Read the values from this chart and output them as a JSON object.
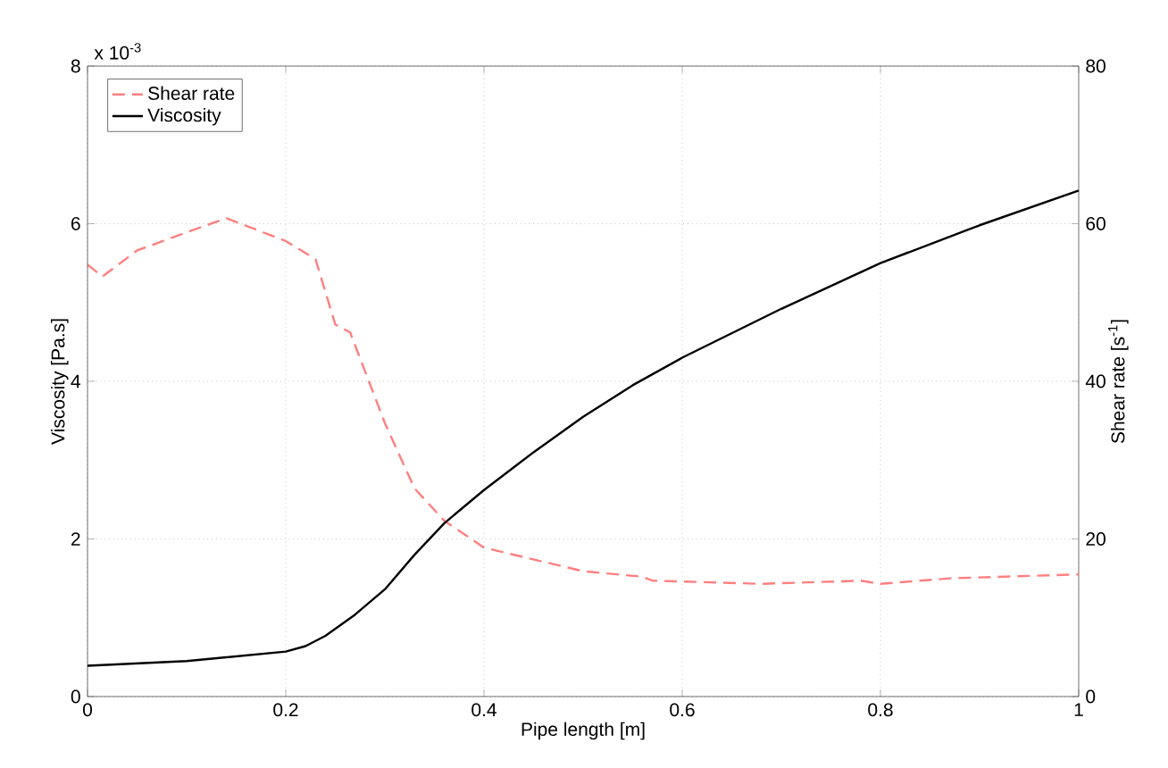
{
  "chart_data": {
    "type": "line",
    "xlabel": "Pipe length [m]",
    "ylabel": "Viscosity [Pa.s]",
    "y2label": "Shear rate [s$^{-1}$]",
    "annotations": [
      "x 10$^{-3}$"
    ],
    "xlim": [
      0,
      1
    ],
    "xticks": [
      0,
      0.2,
      0.4,
      0.6,
      0.8,
      1
    ],
    "ylim": [
      0,
      8
    ],
    "yticks": [
      0,
      2,
      4,
      6,
      8
    ],
    "y2lim": [
      0,
      80
    ],
    "y2ticks": [
      0,
      20,
      40,
      60,
      80
    ],
    "grid": true,
    "legend": "top left",
    "series": [
      {
        "name": "Shear rate",
        "color": "#ff7f7f",
        "axis": "y2",
        "line_style": "dashed",
        "x": [
          0,
          0.015,
          0.05,
          0.1,
          0.14,
          0.2,
          0.23,
          0.25,
          0.265,
          0.3,
          0.33,
          0.36,
          0.4,
          0.5,
          0.56,
          0.57,
          0.68,
          0.78,
          0.8,
          0.87,
          1.0
        ],
        "values": [
          54.8,
          53.3,
          56.6,
          58.9,
          60.7,
          57.8,
          55.5,
          47.2,
          46.2,
          34.7,
          26.4,
          22.3,
          18.9,
          15.9,
          15.2,
          14.7,
          14.3,
          14.7,
          14.3,
          15.0,
          15.5
        ]
      },
      {
        "name": "Viscosity",
        "color": "#000000",
        "axis": "y",
        "line_style": "solid",
        "x": [
          0,
          0.1,
          0.2,
          0.22,
          0.24,
          0.27,
          0.3,
          0.33,
          0.36,
          0.4,
          0.45,
          0.5,
          0.55,
          0.6,
          0.7,
          0.8,
          0.9,
          1.0
        ],
        "values": [
          0.39,
          0.45,
          0.57,
          0.64,
          0.77,
          1.04,
          1.36,
          1.8,
          2.2,
          2.62,
          3.1,
          3.55,
          3.95,
          4.3,
          4.92,
          5.5,
          5.98,
          6.42
        ]
      }
    ]
  }
}
